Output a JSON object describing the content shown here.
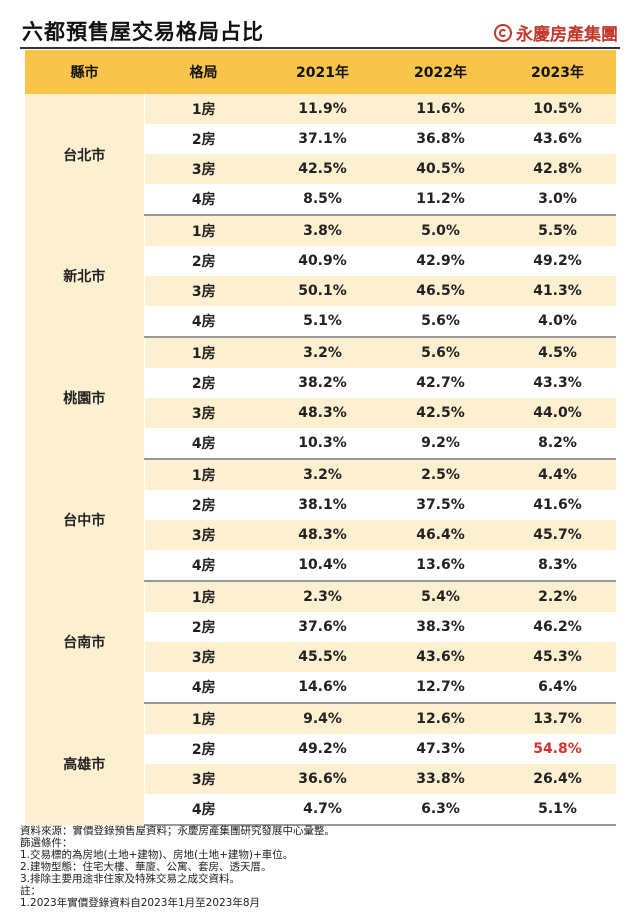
{
  "header": {
    "title": "六都預售屋交易格局占比",
    "brand": "永慶房產集團"
  },
  "chart_data": {
    "type": "table",
    "columns": [
      "縣市",
      "格局",
      "2021年",
      "2022年",
      "2023年"
    ],
    "groups": [
      {
        "city": "台北市",
        "rows": [
          {
            "layout": "1房",
            "values": [
              "11.9%",
              "11.6%",
              "10.5%"
            ]
          },
          {
            "layout": "2房",
            "values": [
              "37.1%",
              "36.8%",
              "43.6%"
            ]
          },
          {
            "layout": "3房",
            "values": [
              "42.5%",
              "40.5%",
              "42.8%"
            ]
          },
          {
            "layout": "4房",
            "values": [
              "8.5%",
              "11.2%",
              "3.0%"
            ]
          }
        ]
      },
      {
        "city": "新北市",
        "rows": [
          {
            "layout": "1房",
            "values": [
              "3.8%",
              "5.0%",
              "5.5%"
            ]
          },
          {
            "layout": "2房",
            "values": [
              "40.9%",
              "42.9%",
              "49.2%"
            ]
          },
          {
            "layout": "3房",
            "values": [
              "50.1%",
              "46.5%",
              "41.3%"
            ]
          },
          {
            "layout": "4房",
            "values": [
              "5.1%",
              "5.6%",
              "4.0%"
            ]
          }
        ]
      },
      {
        "city": "桃園市",
        "rows": [
          {
            "layout": "1房",
            "values": [
              "3.2%",
              "5.6%",
              "4.5%"
            ]
          },
          {
            "layout": "2房",
            "values": [
              "38.2%",
              "42.7%",
              "43.3%"
            ]
          },
          {
            "layout": "3房",
            "values": [
              "48.3%",
              "42.5%",
              "44.0%"
            ]
          },
          {
            "layout": "4房",
            "values": [
              "10.3%",
              "9.2%",
              "8.2%"
            ]
          }
        ]
      },
      {
        "city": "台中市",
        "rows": [
          {
            "layout": "1房",
            "values": [
              "3.2%",
              "2.5%",
              "4.4%"
            ]
          },
          {
            "layout": "2房",
            "values": [
              "38.1%",
              "37.5%",
              "41.6%"
            ]
          },
          {
            "layout": "3房",
            "values": [
              "48.3%",
              "46.4%",
              "45.7%"
            ]
          },
          {
            "layout": "4房",
            "values": [
              "10.4%",
              "13.6%",
              "8.3%"
            ]
          }
        ]
      },
      {
        "city": "台南市",
        "rows": [
          {
            "layout": "1房",
            "values": [
              "2.3%",
              "5.4%",
              "2.2%"
            ]
          },
          {
            "layout": "2房",
            "values": [
              "37.6%",
              "38.3%",
              "46.2%"
            ]
          },
          {
            "layout": "3房",
            "values": [
              "45.5%",
              "43.6%",
              "45.3%"
            ]
          },
          {
            "layout": "4房",
            "values": [
              "14.6%",
              "12.7%",
              "6.4%"
            ]
          }
        ]
      },
      {
        "city": "高雄市",
        "rows": [
          {
            "layout": "1房",
            "values": [
              "9.4%",
              "12.6%",
              "13.7%"
            ]
          },
          {
            "layout": "2房",
            "values": [
              "49.2%",
              "47.3%",
              "54.8%"
            ]
          },
          {
            "layout": "3房",
            "values": [
              "36.6%",
              "33.8%",
              "26.4%"
            ]
          },
          {
            "layout": "4房",
            "values": [
              "4.7%",
              "6.3%",
              "5.1%"
            ]
          }
        ]
      }
    ],
    "highlight": {
      "city": "高雄市",
      "layout": "2房",
      "year": "2023年",
      "color": "#d0342c"
    }
  },
  "footnotes": [
    "資料來源：實價登錄預售屋資料；永慶房產集團研究發展中心彙整。",
    "篩選條件：",
    "1.交易標的為房地(土地+建物)、房地(土地+建物)+車位。",
    "2.建物型態：住宅大樓、華廈、公寓、套房、透天厝。",
    "3.排除主要用途非住家及特殊交易之成交資料。",
    "註：",
    "1.2023年實價登錄資料自2023年1月至2023年8月"
  ]
}
